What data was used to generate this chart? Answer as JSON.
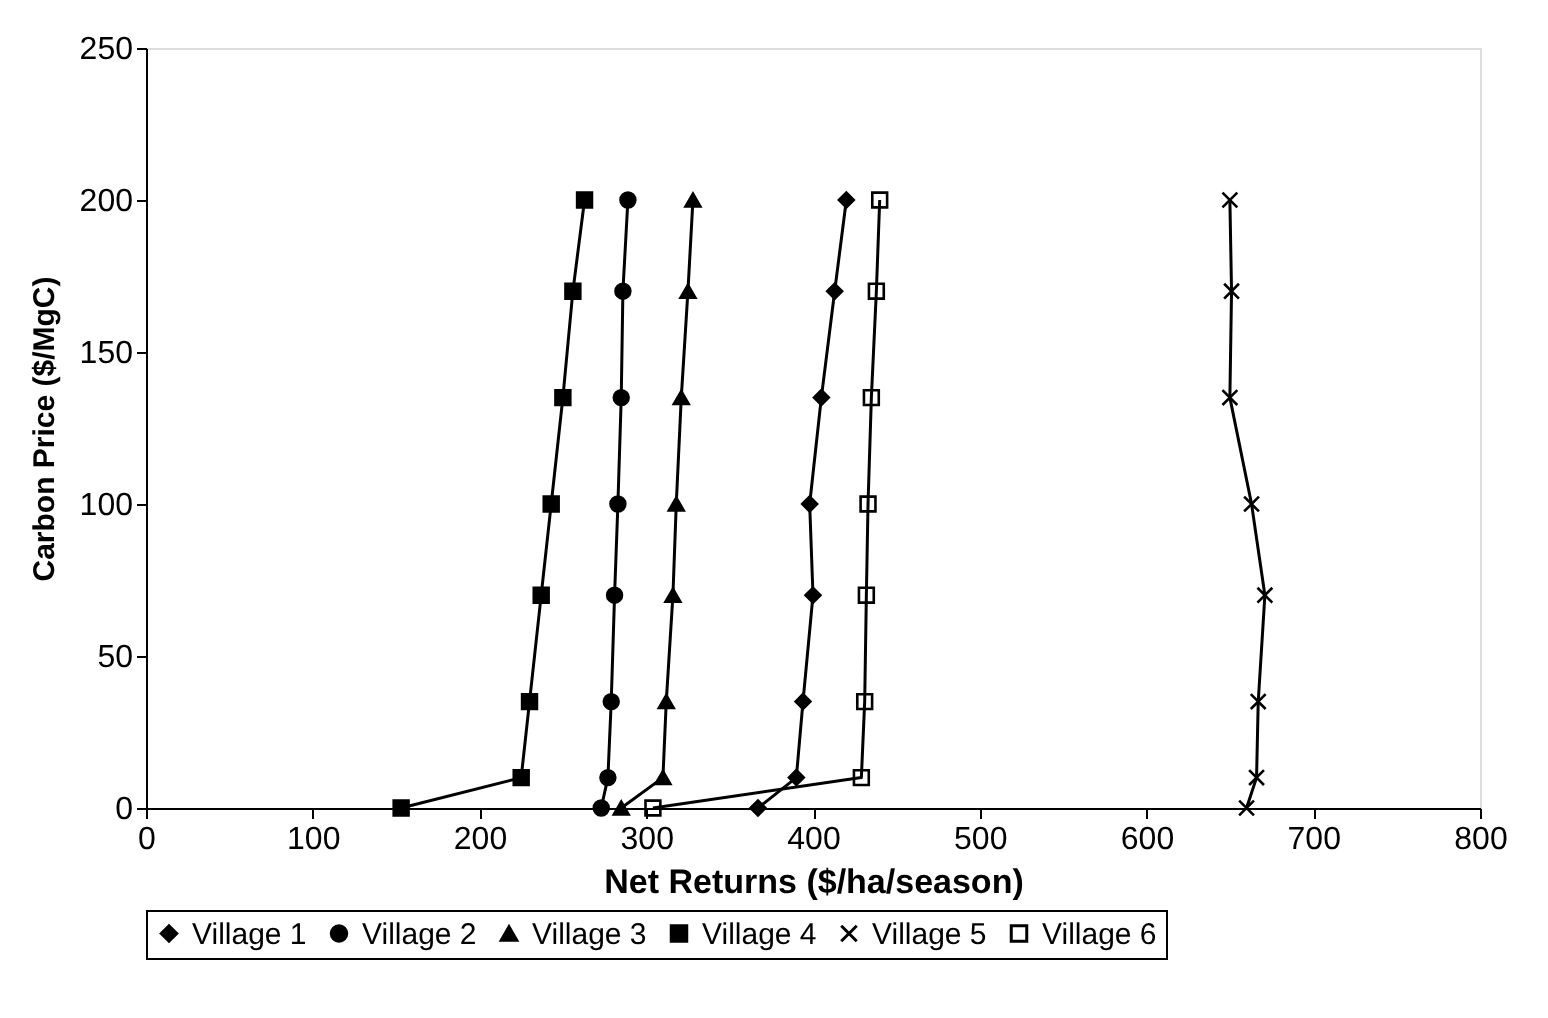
{
  "chart_data": {
    "type": "line",
    "xlabel": "Net Returns ($/ha/season)",
    "ylabel": "Carbon Price ($/MgC)",
    "xlim": [
      0,
      800
    ],
    "xticks": [
      0,
      100,
      200,
      300,
      400,
      500,
      600,
      700,
      800
    ],
    "ylim": [
      0,
      250
    ],
    "yticks": [
      0,
      50,
      100,
      150,
      200,
      250
    ],
    "grid": false,
    "legend": "bottom",
    "line_style": "solid",
    "series": [
      {
        "name": "Village 1",
        "color": "#000000",
        "marker": "diamond",
        "x": [
          367,
          390,
          394,
          400,
          398,
          405,
          413,
          420
        ],
        "values": [
          0,
          10,
          35,
          70,
          100,
          135,
          170,
          200
        ]
      },
      {
        "name": "Village 2",
        "color": "#000000",
        "marker": "circle",
        "x": [
          273,
          277,
          279,
          281,
          283,
          285,
          286,
          289
        ],
        "values": [
          0,
          10,
          35,
          70,
          100,
          135,
          170,
          200
        ]
      },
      {
        "name": "Village 3",
        "color": "#000000",
        "marker": "triangle",
        "x": [
          285,
          310,
          312,
          316,
          318,
          321,
          325,
          328
        ],
        "values": [
          0,
          10,
          35,
          70,
          100,
          135,
          170,
          200
        ]
      },
      {
        "name": "Village 4",
        "color": "#000000",
        "marker": "square",
        "x": [
          153,
          225,
          230,
          237,
          243,
          250,
          256,
          263
        ],
        "values": [
          0,
          10,
          35,
          70,
          100,
          135,
          170,
          200
        ]
      },
      {
        "name": "Village 5",
        "color": "#000000",
        "marker": "cross",
        "x": [
          660,
          666,
          667,
          671,
          663,
          650,
          651,
          650
        ],
        "values": [
          0,
          10,
          35,
          70,
          100,
          135,
          170,
          200
        ]
      },
      {
        "name": "Village 6",
        "color": "#000000",
        "marker": "square",
        "x": [
          304,
          429,
          431,
          432,
          433,
          435,
          438,
          440
        ],
        "values": [
          0,
          10,
          35,
          70,
          100,
          135,
          170,
          200
        ]
      }
    ]
  }
}
